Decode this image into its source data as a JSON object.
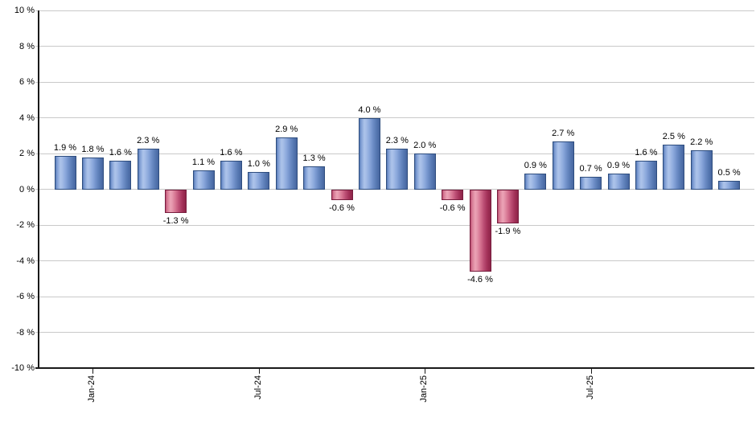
{
  "chart_data": {
    "type": "bar",
    "title": "",
    "xlabel": "",
    "ylabel": "",
    "ylim": [
      -10,
      10
    ],
    "y_tick_step": 2,
    "grid": true,
    "legend": false,
    "y_tick_labels": [
      "10 %",
      "8 %",
      "6 %",
      "4 %",
      "2 %",
      "0 %",
      "-2 %",
      "-4 %",
      "-6 %",
      "-8 %",
      "-10 %"
    ],
    "x_ticks": [
      {
        "label": "Jan-24",
        "bar_index": 1
      },
      {
        "label": "Jul-24",
        "bar_index": 7
      },
      {
        "label": "Jan-25",
        "bar_index": 13
      },
      {
        "label": "Jul-25",
        "bar_index": 19
      }
    ],
    "values": [
      1.9,
      1.8,
      1.6,
      2.3,
      -1.3,
      1.1,
      1.6,
      1.0,
      2.9,
      1.3,
      -0.6,
      4.0,
      2.3,
      2.0,
      -0.6,
      -4.6,
      -1.9,
      0.9,
      2.7,
      0.7,
      0.9,
      1.6,
      2.5,
      2.2,
      0.5
    ],
    "bar_labels": [
      "1.9 %",
      "1.8 %",
      "1.6 %",
      "2.3 %",
      "-1.3 %",
      "1.1 %",
      "1.6 %",
      "1.0 %",
      "2.9 %",
      "1.3 %",
      "-0.6 %",
      "4.0 %",
      "2.3 %",
      "2.0 %",
      "-0.6 %",
      "-4.6 %",
      "-1.9 %",
      "0.9 %",
      "2.7 %",
      "0.7 %",
      "0.9 %",
      "1.6 %",
      "2.5 %",
      "2.2 %",
      "0.5 %"
    ],
    "colors": {
      "positive_bar_light": "#adc4ea",
      "positive_bar_dark": "#47669f",
      "positive_bar_border": "#2e4d7e",
      "negative_bar_light": "#eca4b6",
      "negative_bar_dark": "#8e2449",
      "negative_bar_border": "#771d3e",
      "gridline": "#c9c9c9",
      "axis": "#1a1a1a",
      "label_text": "#000000"
    }
  }
}
